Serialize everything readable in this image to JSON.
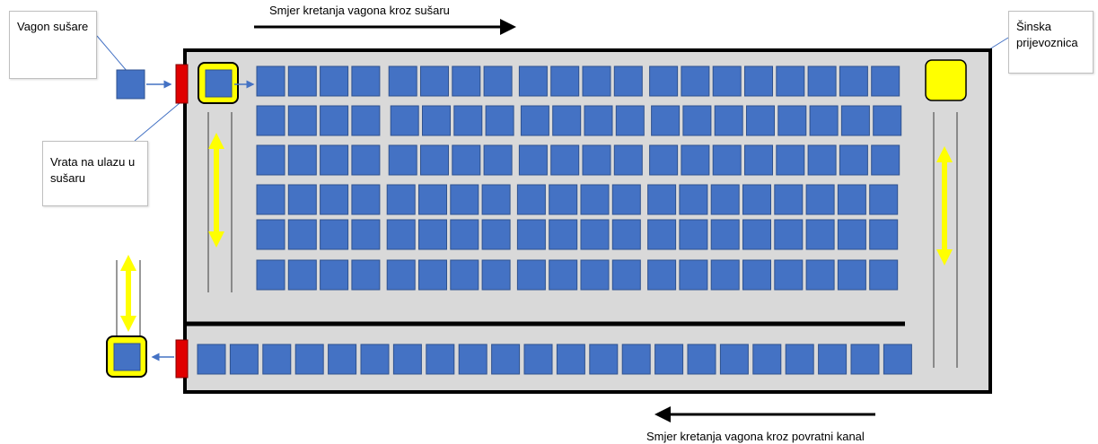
{
  "labels": {
    "top_direction": "Smjer kretanja vagona kroz sušaru",
    "wagon": "Vagon sušare",
    "door": "Vrata na ulazu u sušaru",
    "transporter": "Šinska prijevoznica",
    "bottom_direction": "Smjer kretanja vagona kroz povratni kanal"
  }
}
